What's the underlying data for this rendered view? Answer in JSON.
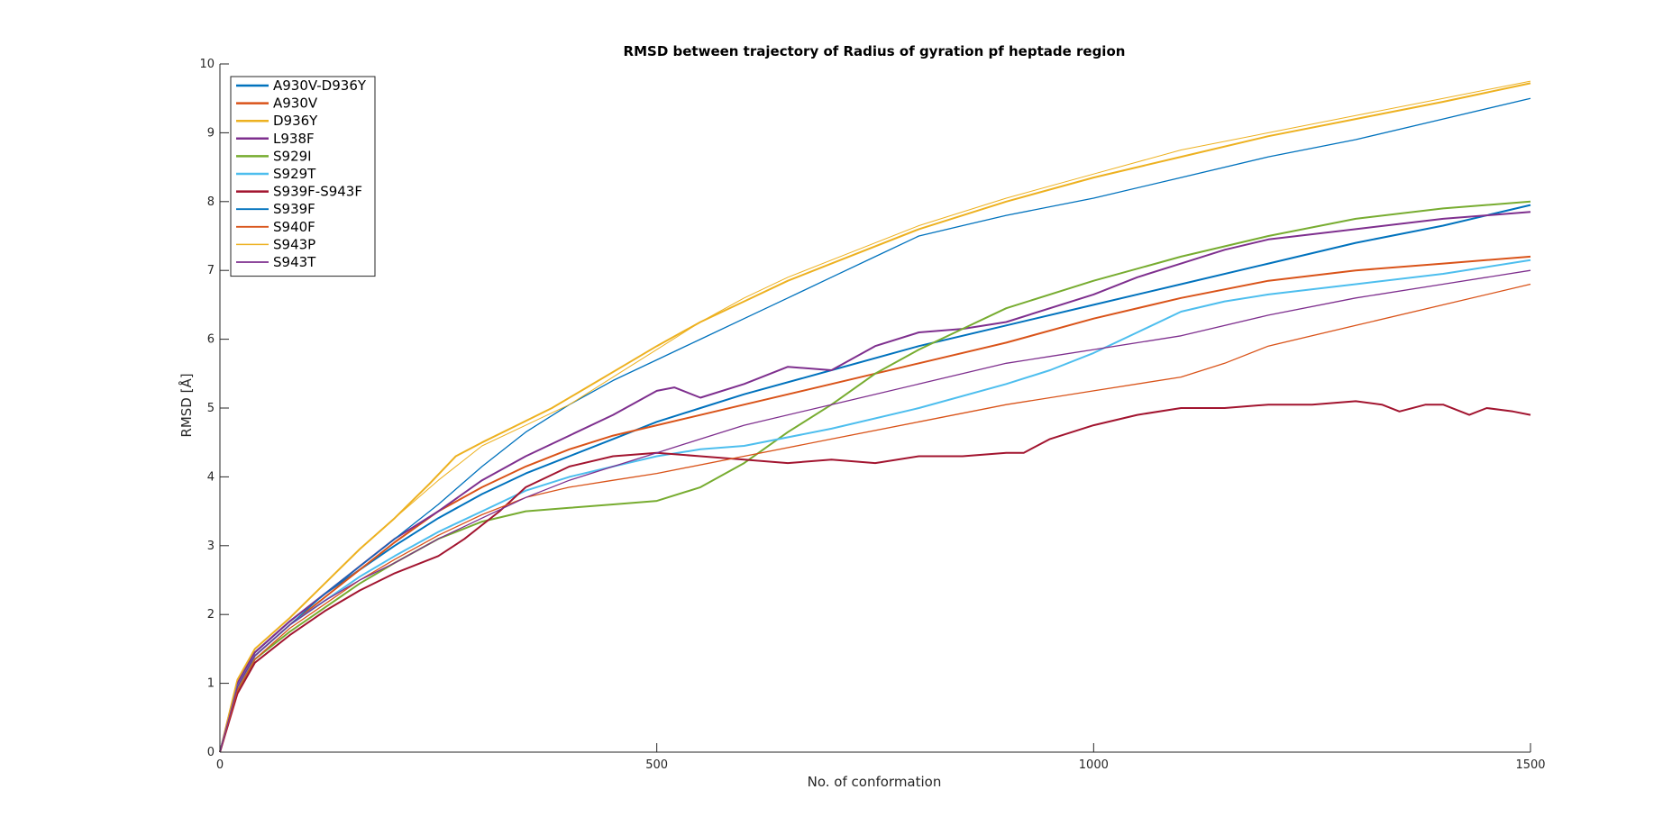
{
  "chart_data": {
    "type": "line",
    "title": "RMSD between trajectory of Radius of gyration pf heptade region",
    "xlabel": "No. of conformation",
    "ylabel": "RMSD [Å]",
    "xlim": [
      0,
      1500
    ],
    "ylim": [
      0,
      10
    ],
    "xticks": [
      0,
      500,
      1000,
      1500
    ],
    "yticks": [
      0,
      1,
      2,
      3,
      4,
      5,
      6,
      7,
      8,
      9,
      10
    ],
    "grid": false,
    "legend_position": "top-left",
    "series": [
      {
        "name": "A930V-D936Y",
        "color": "#0072BD",
        "width": 2.0,
        "x": [
          0,
          20,
          40,
          80,
          120,
          160,
          200,
          250,
          300,
          350,
          400,
          450,
          500,
          550,
          600,
          700,
          800,
          900,
          1000,
          1100,
          1200,
          1300,
          1400,
          1500
        ],
        "y": [
          0,
          1.0,
          1.45,
          1.9,
          2.3,
          2.65,
          3.0,
          3.4,
          3.75,
          4.05,
          4.3,
          4.55,
          4.8,
          5.0,
          5.2,
          5.55,
          5.9,
          6.2,
          6.5,
          6.8,
          7.1,
          7.4,
          7.65,
          7.95
        ]
      },
      {
        "name": "A930V",
        "color": "#D95319",
        "width": 2.0,
        "x": [
          0,
          20,
          40,
          80,
          120,
          160,
          200,
          250,
          300,
          350,
          400,
          450,
          500,
          600,
          700,
          800,
          900,
          1000,
          1100,
          1200,
          1300,
          1400,
          1500
        ],
        "y": [
          0,
          0.95,
          1.4,
          1.85,
          2.25,
          2.65,
          3.05,
          3.5,
          3.85,
          4.15,
          4.4,
          4.6,
          4.75,
          5.05,
          5.35,
          5.65,
          5.95,
          6.3,
          6.6,
          6.85,
          7.0,
          7.1,
          7.2
        ]
      },
      {
        "name": "D936Y",
        "color": "#EDB120",
        "width": 2.0,
        "x": [
          0,
          20,
          40,
          80,
          120,
          160,
          200,
          240,
          270,
          300,
          340,
          380,
          420,
          460,
          500,
          550,
          600,
          650,
          700,
          800,
          900,
          1000,
          1100,
          1200,
          1300,
          1400,
          1500
        ],
        "y": [
          0,
          1.05,
          1.5,
          1.95,
          2.45,
          2.95,
          3.4,
          3.9,
          4.3,
          4.5,
          4.75,
          5.0,
          5.3,
          5.6,
          5.9,
          6.25,
          6.55,
          6.85,
          7.1,
          7.6,
          8.0,
          8.35,
          8.65,
          8.95,
          9.2,
          9.45,
          9.72
        ]
      },
      {
        "name": "L938F",
        "color": "#7E2F8E",
        "width": 2.0,
        "x": [
          0,
          20,
          40,
          80,
          120,
          160,
          200,
          250,
          300,
          350,
          400,
          450,
          500,
          520,
          550,
          600,
          650,
          700,
          750,
          800,
          850,
          900,
          1000,
          1050,
          1100,
          1150,
          1200,
          1300,
          1400,
          1500
        ],
        "y": [
          0,
          1.0,
          1.45,
          1.9,
          2.3,
          2.7,
          3.1,
          3.5,
          3.95,
          4.3,
          4.6,
          4.9,
          5.25,
          5.3,
          5.15,
          5.35,
          5.6,
          5.55,
          5.9,
          6.1,
          6.15,
          6.25,
          6.65,
          6.9,
          7.1,
          7.3,
          7.45,
          7.6,
          7.75,
          7.85
        ]
      },
      {
        "name": "S929I",
        "color": "#77AC30",
        "width": 2.0,
        "x": [
          0,
          20,
          40,
          80,
          120,
          160,
          200,
          250,
          300,
          350,
          400,
          450,
          500,
          550,
          600,
          650,
          700,
          750,
          800,
          850,
          900,
          1000,
          1100,
          1200,
          1300,
          1400,
          1500
        ],
        "y": [
          0,
          0.9,
          1.35,
          1.75,
          2.1,
          2.45,
          2.75,
          3.1,
          3.35,
          3.5,
          3.55,
          3.6,
          3.65,
          3.85,
          4.2,
          4.65,
          5.05,
          5.5,
          5.85,
          6.15,
          6.45,
          6.85,
          7.2,
          7.5,
          7.75,
          7.9,
          8.0
        ]
      },
      {
        "name": "S929T",
        "color": "#4DBEEE",
        "width": 2.0,
        "x": [
          0,
          20,
          40,
          80,
          120,
          160,
          200,
          250,
          300,
          350,
          400,
          450,
          500,
          550,
          600,
          700,
          800,
          900,
          950,
          1000,
          1050,
          1100,
          1150,
          1200,
          1300,
          1400,
          1500
        ],
        "y": [
          0,
          0.95,
          1.4,
          1.85,
          2.2,
          2.55,
          2.85,
          3.2,
          3.5,
          3.8,
          4.0,
          4.15,
          4.3,
          4.4,
          4.45,
          4.7,
          5.0,
          5.35,
          5.55,
          5.8,
          6.1,
          6.4,
          6.55,
          6.65,
          6.8,
          6.95,
          7.15
        ]
      },
      {
        "name": "S939F-S943F",
        "color": "#A2142F",
        "width": 2.0,
        "x": [
          0,
          20,
          40,
          80,
          120,
          160,
          200,
          250,
          280,
          300,
          320,
          350,
          400,
          450,
          500,
          550,
          600,
          650,
          700,
          750,
          800,
          850,
          900,
          920,
          950,
          1000,
          1050,
          1100,
          1150,
          1200,
          1250,
          1300,
          1330,
          1350,
          1380,
          1400,
          1430,
          1450,
          1480,
          1500
        ],
        "y": [
          0,
          0.85,
          1.3,
          1.7,
          2.05,
          2.35,
          2.6,
          2.85,
          3.1,
          3.3,
          3.5,
          3.85,
          4.15,
          4.3,
          4.35,
          4.3,
          4.25,
          4.2,
          4.25,
          4.2,
          4.3,
          4.3,
          4.35,
          4.35,
          4.55,
          4.75,
          4.9,
          5.0,
          5.0,
          5.05,
          5.05,
          5.1,
          5.05,
          4.95,
          5.05,
          5.05,
          4.9,
          5.0,
          4.95,
          4.9
        ]
      },
      {
        "name": "S939F",
        "color": "#0072BD",
        "width": 1.3,
        "x": [
          0,
          20,
          40,
          80,
          120,
          160,
          200,
          250,
          300,
          350,
          400,
          450,
          500,
          550,
          600,
          650,
          700,
          750,
          800,
          850,
          900,
          1000,
          1100,
          1200,
          1300,
          1400,
          1500
        ],
        "y": [
          0,
          0.95,
          1.4,
          1.85,
          2.3,
          2.7,
          3.1,
          3.6,
          4.15,
          4.65,
          5.05,
          5.4,
          5.7,
          6.0,
          6.3,
          6.6,
          6.9,
          7.2,
          7.5,
          7.65,
          7.8,
          8.05,
          8.35,
          8.65,
          8.9,
          9.2,
          9.5
        ]
      },
      {
        "name": "S940F",
        "color": "#D95319",
        "width": 1.3,
        "x": [
          0,
          20,
          40,
          80,
          120,
          160,
          200,
          250,
          300,
          350,
          400,
          450,
          500,
          600,
          700,
          800,
          900,
          1000,
          1100,
          1150,
          1200,
          1300,
          1400,
          1500
        ],
        "y": [
          0,
          0.9,
          1.35,
          1.8,
          2.15,
          2.5,
          2.8,
          3.15,
          3.45,
          3.7,
          3.85,
          3.95,
          4.05,
          4.3,
          4.55,
          4.8,
          5.05,
          5.25,
          5.45,
          5.65,
          5.9,
          6.2,
          6.5,
          6.8
        ]
      },
      {
        "name": "S943P",
        "color": "#EDB120",
        "width": 1.0,
        "x": [
          0,
          20,
          40,
          80,
          120,
          160,
          200,
          250,
          300,
          350,
          400,
          450,
          500,
          550,
          600,
          650,
          700,
          800,
          900,
          1000,
          1100,
          1200,
          1300,
          1400,
          1500
        ],
        "y": [
          0,
          1.05,
          1.5,
          1.95,
          2.45,
          2.95,
          3.4,
          3.95,
          4.45,
          4.75,
          5.05,
          5.45,
          5.85,
          6.25,
          6.6,
          6.9,
          7.15,
          7.65,
          8.05,
          8.4,
          8.75,
          9.0,
          9.25,
          9.5,
          9.75
        ]
      },
      {
        "name": "S943T",
        "color": "#7E2F8E",
        "width": 1.3,
        "x": [
          0,
          20,
          40,
          80,
          120,
          160,
          200,
          250,
          300,
          350,
          400,
          450,
          500,
          550,
          600,
          700,
          800,
          900,
          950,
          1000,
          1100,
          1200,
          1300,
          1400,
          1500
        ],
        "y": [
          0,
          0.95,
          1.4,
          1.85,
          2.2,
          2.5,
          2.75,
          3.1,
          3.4,
          3.7,
          3.95,
          4.15,
          4.35,
          4.55,
          4.75,
          5.05,
          5.35,
          5.65,
          5.75,
          5.85,
          6.05,
          6.35,
          6.6,
          6.8,
          7.0
        ]
      }
    ]
  }
}
